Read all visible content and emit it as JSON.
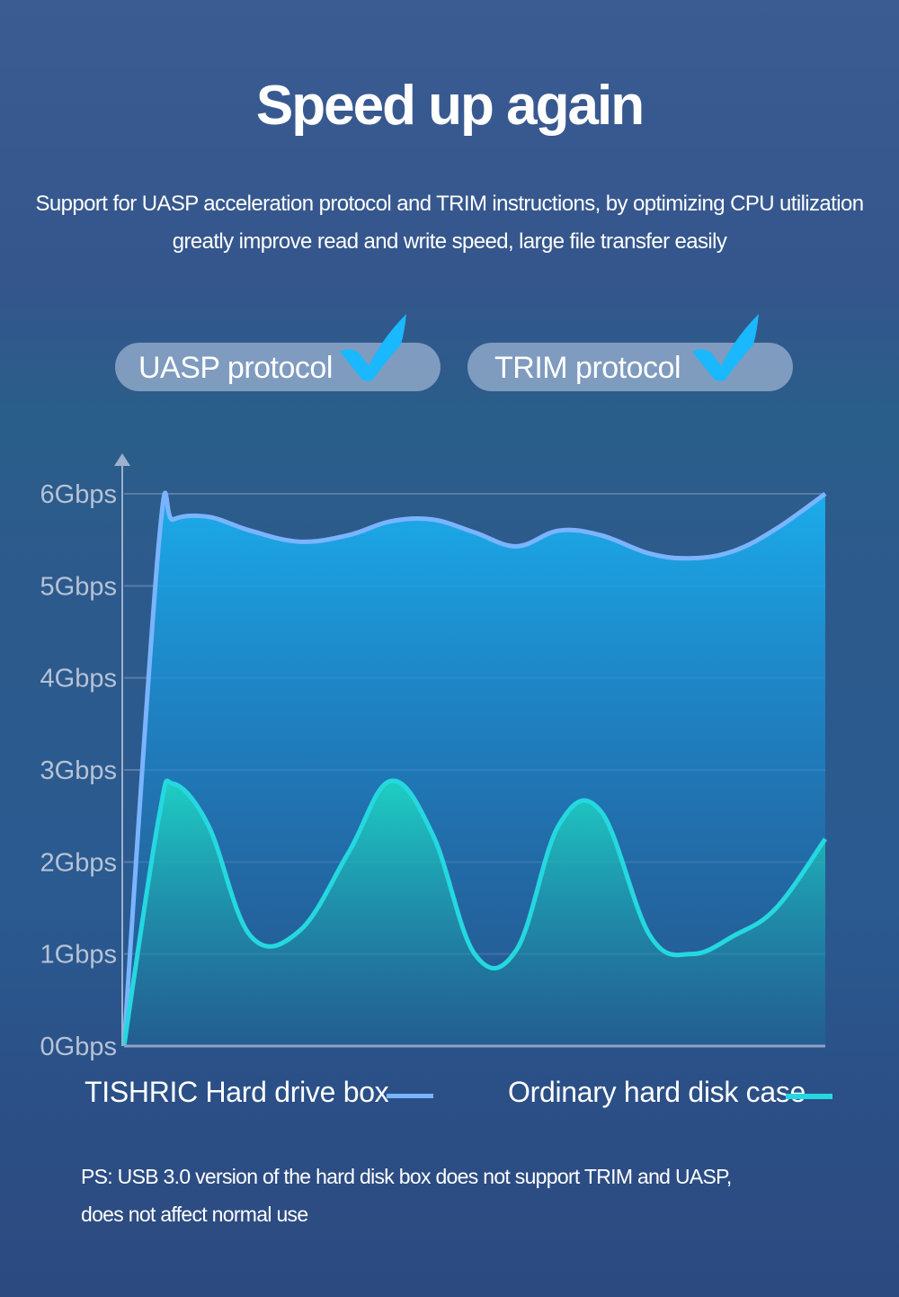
{
  "header": {
    "title": "Speed up again",
    "subtitle_line1": "Support for UASP acceleration protocol and TRIM instructions, by optimizing CPU  utilization",
    "subtitle_line2": "greatly improve read and write speed, large file transfer easily"
  },
  "badges": [
    {
      "label": "UASP protocol",
      "icon": "checkmark-icon"
    },
    {
      "label": "TRIM protocol",
      "icon": "checkmark-icon"
    }
  ],
  "chart_data": {
    "type": "area",
    "title": "",
    "xlabel": "",
    "ylabel": "",
    "ylim": [
      0,
      6
    ],
    "grid": true,
    "y_ticks": [
      "0Gbps",
      "1Gbps",
      "2Gbps",
      "3Gbps",
      "4Gbps",
      "5Gbps",
      "6Gbps"
    ],
    "x": [
      0,
      0.05,
      0.07,
      0.12,
      0.18,
      0.25,
      0.32,
      0.38,
      0.44,
      0.5,
      0.56,
      0.62,
      0.68,
      0.75,
      0.81,
      0.87,
      0.93,
      1.0
    ],
    "series": [
      {
        "name": "TISHRIC Hard drive box",
        "color": "#7ab4ff",
        "values": [
          0,
          5.5,
          5.72,
          5.75,
          5.6,
          5.48,
          5.55,
          5.7,
          5.72,
          5.58,
          5.43,
          5.6,
          5.55,
          5.35,
          5.3,
          5.38,
          5.62,
          6.0
        ]
      },
      {
        "name": "Ordinary hard disk case",
        "color": "#25d8e0",
        "values": [
          0,
          2.5,
          2.85,
          2.4,
          1.2,
          1.25,
          2.1,
          2.88,
          2.3,
          1.0,
          1.05,
          2.4,
          2.55,
          1.2,
          1.0,
          1.2,
          1.5,
          2.25
        ]
      }
    ]
  },
  "legend": {
    "item1": "TISHRIC Hard drive box",
    "item2": "Ordinary hard disk case"
  },
  "note": {
    "line1": "PS: USB 3.0 version of the hard disk box does not support TRIM and UASP,",
    "line2": "does not affect normal use"
  }
}
